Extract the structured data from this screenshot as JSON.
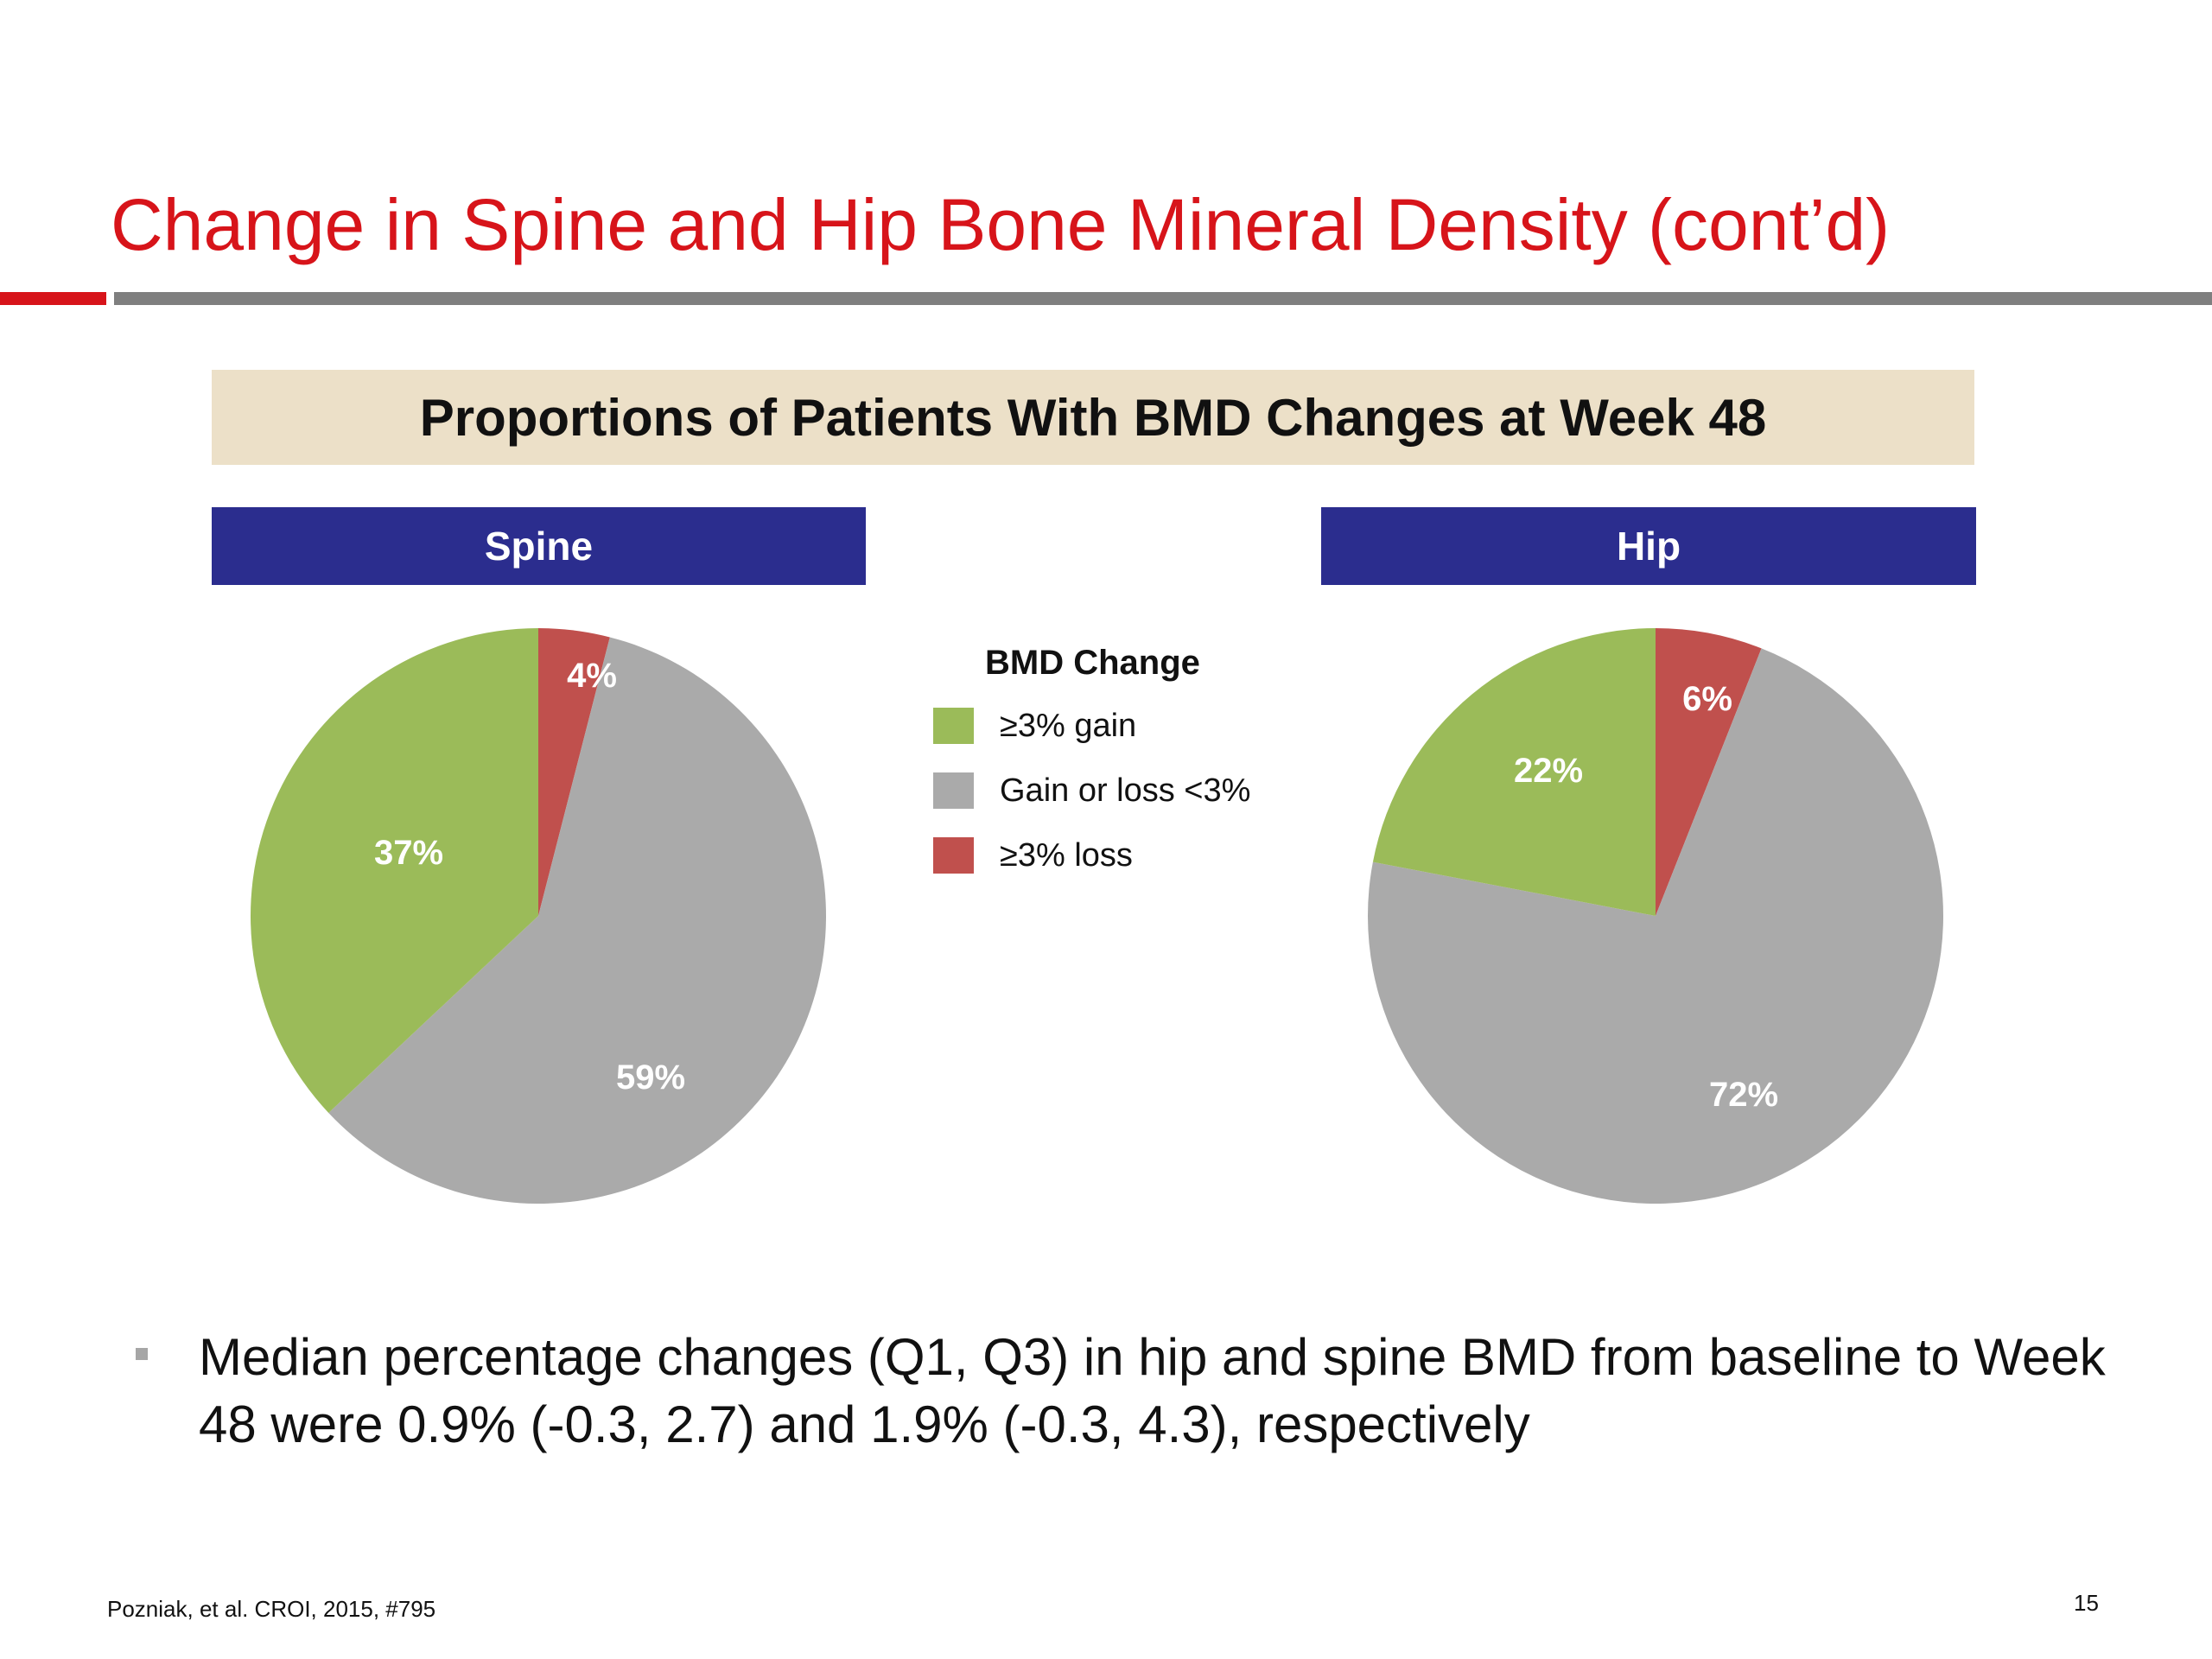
{
  "slide": {
    "title": "Change in Spine and Hip Bone Mineral Density (cont’d)",
    "banner": "Proportions of Patients With BMD Changes at Week 48",
    "bullet": "Median percentage changes (Q1, Q3) in hip and spine BMD from baseline to Week 48 were 0.9% (-0.3, 2.7) and 1.9% (-0.3, 4.3), respectively",
    "footnote": "Pozniak, et al. CROI, 2015, #795",
    "page_number": "15"
  },
  "colors": {
    "title_red": "#d7141a",
    "rule_red": "#d7141a",
    "rule_gray": "#7f7f7f",
    "banner_bg": "#ece0c8",
    "header_blue": "#2b2d8e",
    "gain": "#9bbb59",
    "neutral": "#aaaaaa",
    "loss": "#c0504d",
    "bullet_gray": "#a6a6a6"
  },
  "legend": {
    "title": "BMD Change",
    "items": [
      {
        "label": "≥3% gain",
        "color_key": "gain"
      },
      {
        "label": "Gain or loss <3%",
        "color_key": "neutral"
      },
      {
        "label": "≥3% loss",
        "color_key": "loss"
      }
    ]
  },
  "chart_data": [
    {
      "type": "pie",
      "title": "Spine",
      "slices": [
        {
          "name": "≥3% loss",
          "value": 4,
          "label": "4%",
          "color": "#c0504d"
        },
        {
          "name": "Gain or loss <3%",
          "value": 59,
          "label": "59%",
          "color": "#aaaaaa"
        },
        {
          "name": "≥3% gain",
          "value": 37,
          "label": "37%",
          "color": "#9bbb59"
        }
      ]
    },
    {
      "type": "pie",
      "title": "Hip",
      "slices": [
        {
          "name": "≥3% loss",
          "value": 6,
          "label": "6%",
          "color": "#c0504d"
        },
        {
          "name": "Gain or loss <3%",
          "value": 72,
          "label": "72%",
          "color": "#aaaaaa"
        },
        {
          "name": "≥3% gain",
          "value": 22,
          "label": "22%",
          "color": "#9bbb59"
        }
      ]
    }
  ]
}
